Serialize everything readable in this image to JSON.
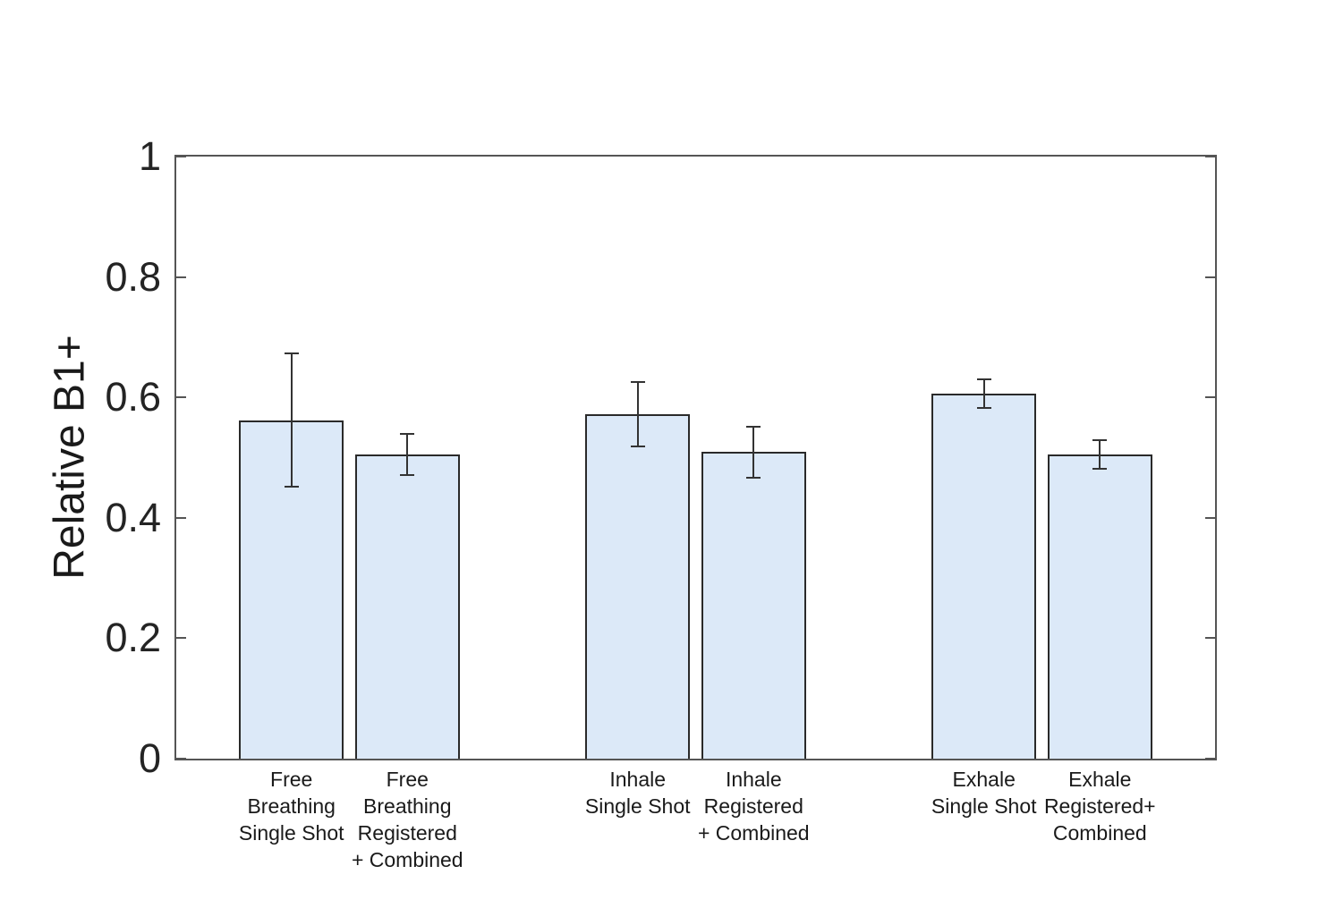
{
  "figure": {
    "background": "#ffffff"
  },
  "chart_data": {
    "type": "bar",
    "title": "",
    "xlabel": "",
    "ylabel": "Relative B1+",
    "ylim": [
      0,
      1
    ],
    "yticks": [
      0,
      0.2,
      0.4,
      0.6,
      0.8,
      1
    ],
    "ytick_labels": [
      "0",
      "0.2",
      "0.4",
      "0.6",
      "0.8",
      "1"
    ],
    "grid": false,
    "legend": "none",
    "groups": [
      "Free Breathing",
      "Inhale",
      "Exhale"
    ],
    "bars": [
      {
        "group": "Free Breathing",
        "label": "Free Breathing Single Shot",
        "label_lines": [
          "Free",
          "Breathing",
          "Single Shot"
        ],
        "value": 0.562,
        "error": 0.111
      },
      {
        "group": "Free Breathing",
        "label": "Free Breathing Registered + Combined",
        "label_lines": [
          "Free",
          "Breathing",
          "Registered",
          "+ Combined"
        ],
        "value": 0.505,
        "error": 0.034
      },
      {
        "group": "Inhale",
        "label": "Inhale Single Shot",
        "label_lines": [
          "Inhale",
          "Single Shot"
        ],
        "value": 0.572,
        "error": 0.054
      },
      {
        "group": "Inhale",
        "label": "Inhale Registered + Combined",
        "label_lines": [
          "Inhale",
          "Registered",
          "+ Combined"
        ],
        "value": 0.509,
        "error": 0.043
      },
      {
        "group": "Exhale",
        "label": "Exhale Single Shot",
        "label_lines": [
          "Exhale",
          "Single Shot"
        ],
        "value": 0.606,
        "error": 0.024
      },
      {
        "group": "Exhale",
        "label": "Exhale Registered+ Combined",
        "label_lines": [
          "Exhale",
          "Registered+",
          "Combined"
        ],
        "value": 0.505,
        "error": 0.024
      }
    ],
    "colors": {
      "bar_fill": "#dce9f8",
      "bar_edge": "#2a2a2a",
      "errorbar": "#333333",
      "axis": "#555555",
      "tick_text": "#242424",
      "label_text": "#1a1a1a"
    }
  }
}
